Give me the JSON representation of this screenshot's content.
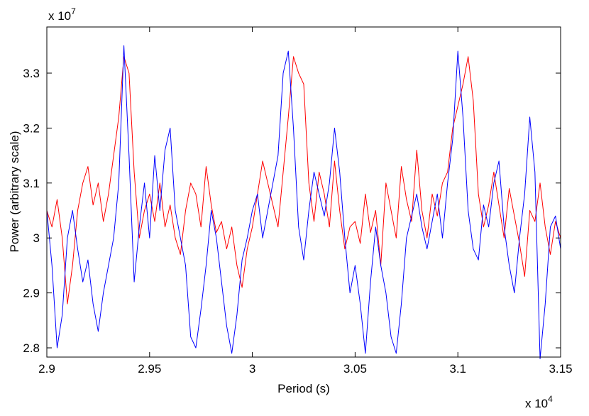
{
  "chart_data": {
    "type": "line",
    "xlabel": "Period (s)",
    "ylabel": "Power (arbitrary scale)",
    "x_multiplier": {
      "base": "x 10",
      "exponent": "4"
    },
    "y_multiplier": {
      "base": "x 10",
      "exponent": "7"
    },
    "xlim": [
      2.9,
      3.15
    ],
    "xticks": [
      2.9,
      2.95,
      3,
      3.05,
      3.1,
      3.15
    ],
    "ylim": [
      2.7832,
      3.384
    ],
    "yticks": [
      2.8,
      2.9,
      3,
      3.1,
      3.2,
      3.3
    ],
    "grid": false,
    "x": [
      2.9,
      2.9025,
      2.905,
      2.9075,
      2.91,
      2.9125,
      2.915,
      2.9175,
      2.92,
      2.9225,
      2.925,
      2.9275,
      2.93,
      2.9325,
      2.935,
      2.9375,
      2.94,
      2.9425,
      2.945,
      2.9475,
      2.95,
      2.9525,
      2.955,
      2.9575,
      2.96,
      2.9625,
      2.965,
      2.9675,
      2.97,
      2.9725,
      2.975,
      2.9775,
      2.98,
      2.9825,
      2.985,
      2.9875,
      2.99,
      2.9925,
      2.995,
      2.9975,
      3.0,
      3.0025,
      3.005,
      3.0075,
      3.01,
      3.0125,
      3.015,
      3.0175,
      3.02,
      3.0225,
      3.025,
      3.0275,
      3.03,
      3.0325,
      3.035,
      3.0375,
      3.04,
      3.0425,
      3.045,
      3.0475,
      3.05,
      3.0525,
      3.055,
      3.0575,
      3.06,
      3.0625,
      3.065,
      3.0675,
      3.07,
      3.0725,
      3.075,
      3.0775,
      3.08,
      3.0825,
      3.085,
      3.0875,
      3.09,
      3.0925,
      3.095,
      3.0975,
      3.1,
      3.1025,
      3.105,
      3.1075,
      3.11,
      3.1125,
      3.115,
      3.1175,
      3.12,
      3.1225,
      3.125,
      3.1275,
      3.13,
      3.1325,
      3.135,
      3.1375,
      3.14,
      3.1425,
      3.145,
      3.1475,
      3.15
    ],
    "series": [
      {
        "color": "#ff0000",
        "values": [
          3.05,
          3.02,
          3.07,
          3.0,
          2.88,
          2.95,
          3.05,
          3.1,
          3.13,
          3.06,
          3.1,
          3.03,
          3.08,
          3.15,
          3.22,
          3.33,
          3.3,
          3.12,
          3.0,
          3.05,
          3.08,
          3.03,
          3.1,
          3.02,
          3.06,
          3.0,
          2.97,
          3.05,
          3.1,
          3.08,
          3.02,
          3.13,
          3.06,
          3.01,
          3.03,
          2.98,
          3.02,
          2.95,
          2.91,
          2.98,
          3.02,
          3.08,
          3.14,
          3.1,
          3.06,
          3.02,
          3.12,
          3.22,
          3.33,
          3.3,
          3.28,
          3.1,
          3.03,
          3.12,
          3.08,
          3.02,
          3.14,
          3.05,
          2.98,
          3.02,
          3.03,
          2.99,
          3.08,
          3.01,
          3.05,
          2.95,
          3.1,
          3.05,
          3.0,
          3.13,
          3.07,
          3.03,
          3.16,
          3.05,
          3.0,
          3.08,
          3.04,
          3.1,
          3.12,
          3.2,
          3.24,
          3.28,
          3.33,
          3.25,
          3.08,
          3.02,
          3.06,
          3.12,
          3.06,
          3.0,
          3.09,
          3.04,
          2.99,
          2.93,
          3.05,
          3.03,
          3.1,
          3.02,
          2.97,
          3.03,
          3.0
        ]
      },
      {
        "color": "#0000ff",
        "values": [
          3.05,
          2.95,
          2.8,
          2.86,
          3.0,
          3.05,
          2.98,
          2.92,
          2.96,
          2.88,
          2.83,
          2.9,
          2.95,
          3.0,
          3.1,
          3.35,
          3.15,
          2.92,
          3.02,
          3.1,
          3.0,
          3.15,
          3.05,
          3.16,
          3.2,
          3.05,
          3.0,
          2.95,
          2.82,
          2.8,
          2.87,
          2.95,
          3.05,
          3.0,
          2.92,
          2.84,
          2.79,
          2.86,
          2.96,
          3.0,
          3.05,
          3.08,
          3.0,
          3.05,
          3.1,
          3.15,
          3.3,
          3.34,
          3.2,
          3.02,
          2.96,
          3.05,
          3.12,
          3.08,
          3.04,
          3.1,
          3.2,
          3.12,
          3.0,
          2.9,
          2.95,
          2.88,
          2.79,
          2.92,
          3.02,
          2.95,
          2.9,
          2.82,
          2.79,
          2.88,
          3.0,
          3.04,
          3.08,
          3.02,
          2.98,
          3.03,
          3.08,
          3.0,
          3.1,
          3.18,
          3.34,
          3.22,
          3.05,
          2.98,
          2.96,
          3.06,
          3.02,
          3.1,
          3.14,
          3.02,
          2.95,
          2.9,
          3.0,
          3.08,
          3.22,
          3.12,
          2.78,
          2.88,
          3.02,
          3.04,
          2.98
        ]
      }
    ]
  }
}
